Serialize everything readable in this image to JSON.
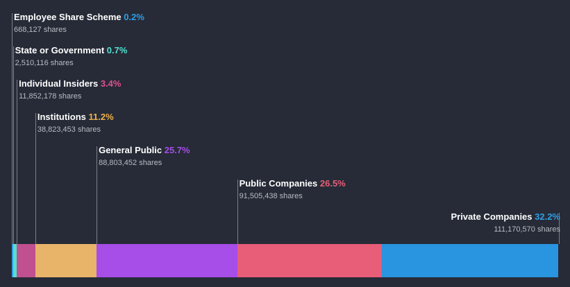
{
  "chart_data": {
    "type": "bar",
    "subtype": "stacked-horizontal-ownership",
    "categories": [
      "Employee Share Scheme",
      "State or Government",
      "Individual Insiders",
      "Institutions",
      "General Public",
      "Public Companies",
      "Private Companies"
    ],
    "series": [
      {
        "name": "Ownership",
        "values": [
          0.2,
          0.7,
          3.4,
          11.2,
          25.7,
          26.5,
          32.2
        ],
        "pct_labels": [
          "0.2%",
          "0.7%",
          "3.4%",
          "11.2%",
          "25.7%",
          "26.5%",
          "32.2%"
        ],
        "shares": [
          "668,127 shares",
          "2,510,116 shares",
          "11,852,178 shares",
          "38,823,453 shares",
          "88,803,452 shares",
          "91,505,438 shares",
          "111,170,570 shares"
        ],
        "colors": [
          "#2f9fe6",
          "#55e0d0",
          "#c0508f",
          "#e8b46a",
          "#a74de8",
          "#e85d78",
          "#2994e0"
        ]
      }
    ],
    "label_colors": [
      "#2f9fe6",
      "#55e0d0",
      "#e0508f",
      "#f0b04a",
      "#a74de8",
      "#e85d78",
      "#2f9fe6"
    ],
    "unit": "%",
    "xlim": [
      0,
      100
    ]
  }
}
